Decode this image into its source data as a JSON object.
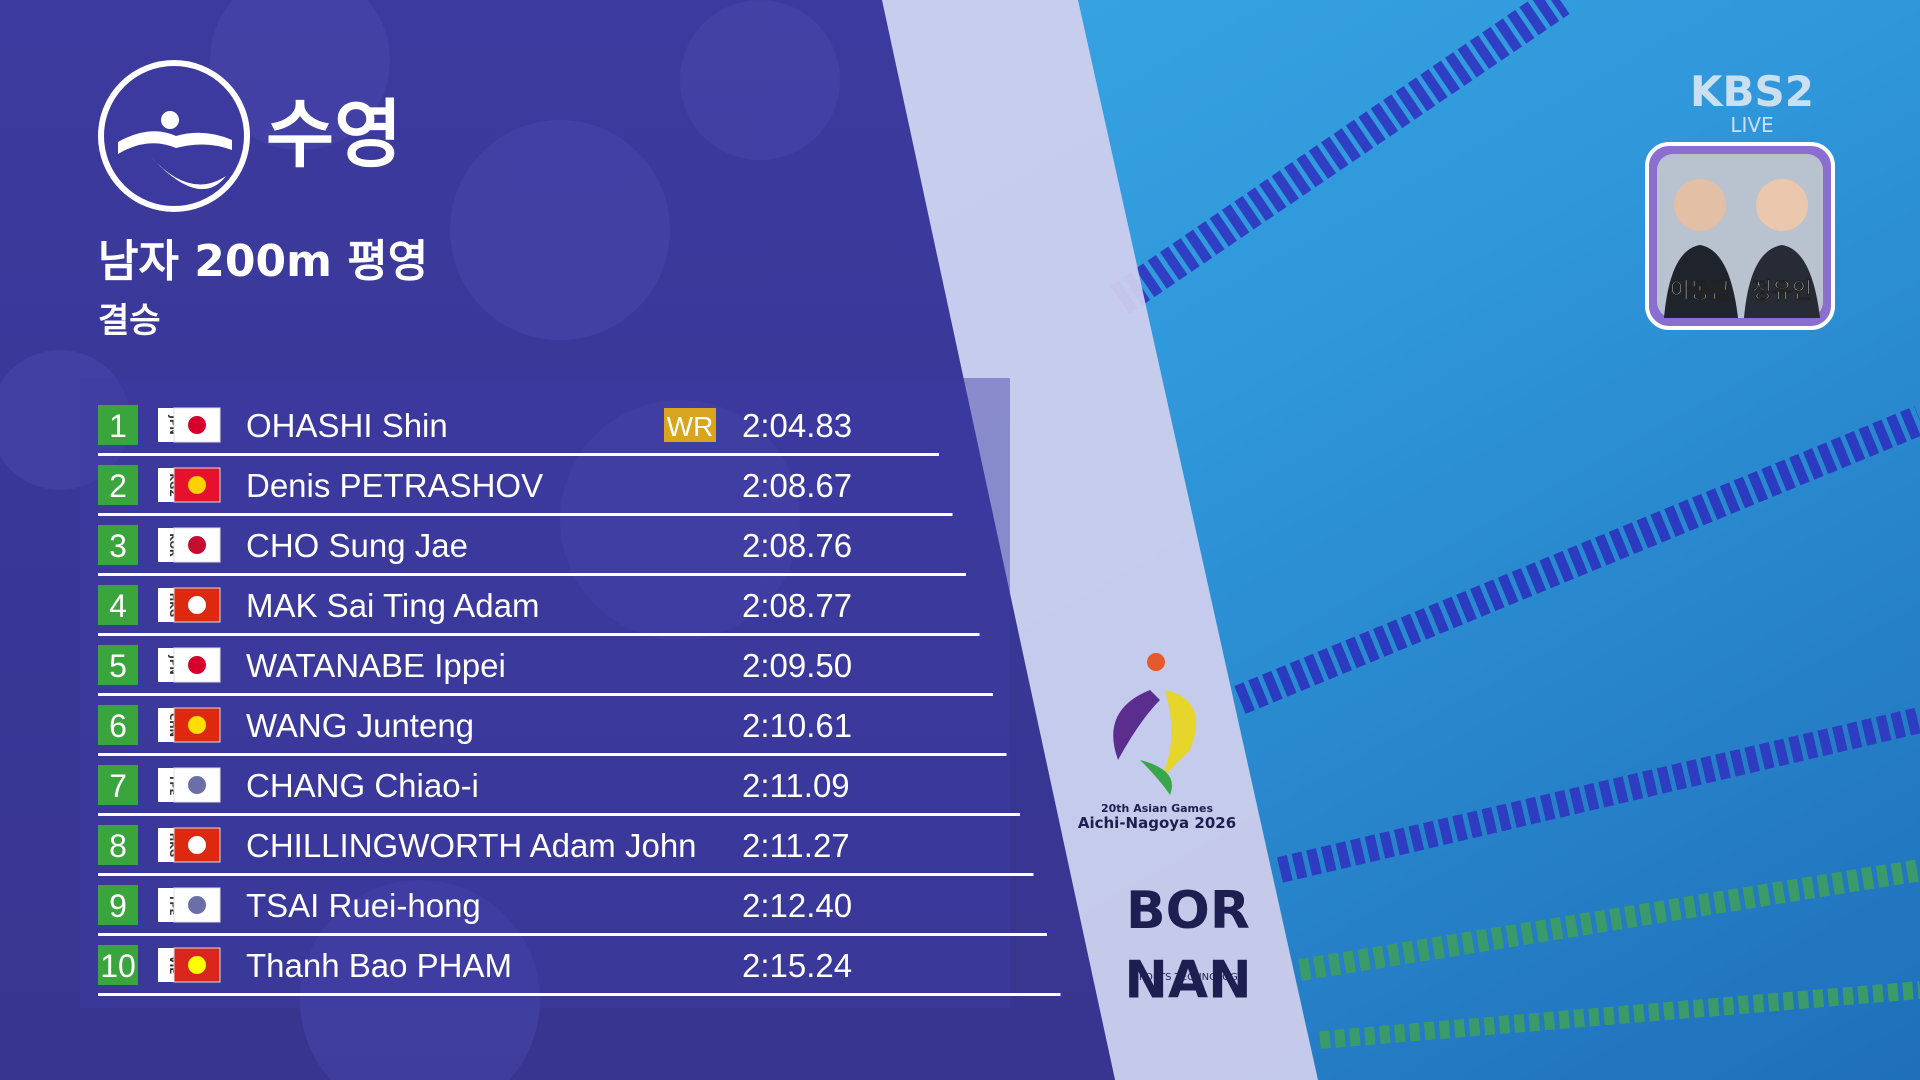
{
  "header": {
    "sport": "수영",
    "event": "남자 200m 평영",
    "round": "결승"
  },
  "results": [
    {
      "rank": "1",
      "country": "JPN",
      "name": "OHASHI Shin",
      "record": "WR",
      "time": "2:04.83"
    },
    {
      "rank": "2",
      "country": "KGZ",
      "name": "Denis PETRASHOV",
      "time": "2:08.67"
    },
    {
      "rank": "3",
      "country": "KOR",
      "name": "CHO Sung Jae",
      "time": "2:08.76"
    },
    {
      "rank": "4",
      "country": "HKG",
      "name": "MAK Sai Ting Adam",
      "time": "2:08.77"
    },
    {
      "rank": "5",
      "country": "JPN",
      "name": "WATANABE Ippei",
      "time": "2:09.50"
    },
    {
      "rank": "6",
      "country": "CHN",
      "name": "WANG Junteng",
      "time": "2:10.61"
    },
    {
      "rank": "7",
      "country": "TPE",
      "name": "CHANG Chiao-i",
      "time": "2:11.09"
    },
    {
      "rank": "8",
      "country": "HKG",
      "name": "CHILLINGWORTH Adam John",
      "time": "2:11.27"
    },
    {
      "rank": "9",
      "country": "TPE",
      "name": "TSAI Ruei-hong",
      "time": "2:12.40"
    },
    {
      "rank": "10",
      "country": "VIE",
      "name": "Thanh Bao PHAM",
      "time": "2:15.24"
    }
  ],
  "broadcaster": {
    "channel": "KBS2",
    "status": "LIVE",
    "commentators": [
      "이동근",
      "정유인"
    ]
  },
  "logos": {
    "games_line1": "20th Asian Games",
    "games_line2": "Aichi-Nagoya 2026",
    "sponsor_line1": "BOR",
    "sponsor_line2": "NAN",
    "sponsor_line3": "SPORTS TECHNOLOGY"
  }
}
